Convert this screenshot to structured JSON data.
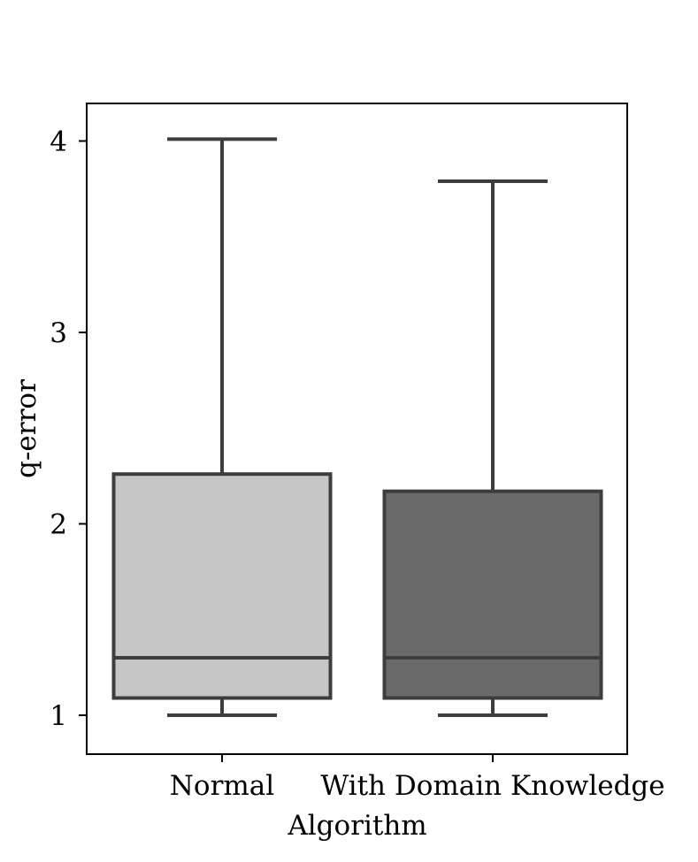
{
  "chart_data": {
    "type": "box",
    "title": "",
    "xlabel": "Algorithm",
    "ylabel": "q-error",
    "categories": [
      "Normal",
      "With Domain Knowledge"
    ],
    "ylim": [
      0.8,
      4.2
    ],
    "yticks": [
      1,
      2,
      3,
      4
    ],
    "ytick_labels": [
      "1",
      "2",
      "3",
      "4"
    ],
    "grid": false,
    "legend": "none",
    "boxes": [
      {
        "category": "Normal",
        "whisker_low": 1.0,
        "q1": 1.09,
        "median": 1.3,
        "q3": 2.26,
        "whisker_high": 4.01,
        "color": "#c6c6c6"
      },
      {
        "category": "With Domain Knowledge",
        "whisker_low": 1.0,
        "q1": 1.09,
        "median": 1.3,
        "q3": 2.17,
        "whisker_high": 3.79,
        "color": "#6a6a6a"
      }
    ],
    "line_color": "#3d3d3d"
  }
}
